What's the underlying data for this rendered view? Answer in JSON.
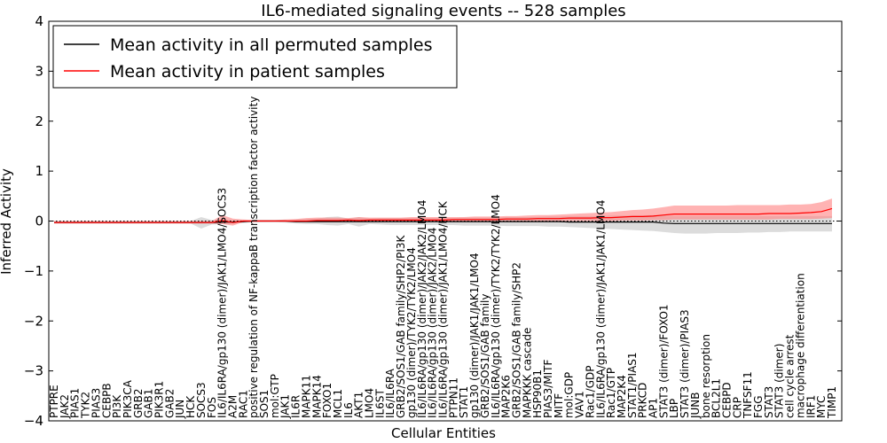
{
  "chart_data": {
    "type": "line",
    "title": "IL6-mediated signaling events -- 528 samples",
    "xlabel": "Cellular Entities",
    "ylabel": "Inferred Activity",
    "ylim": [
      -4,
      4
    ],
    "yticks": [
      -4,
      -3,
      -2,
      -1,
      0,
      1,
      2,
      3,
      4
    ],
    "ytick_labels": [
      "−4",
      "−3",
      "−2",
      "−1",
      "0",
      "1",
      "2",
      "3",
      "4"
    ],
    "legend": {
      "position": "top-left",
      "entries": [
        "Mean activity in all permuted samples",
        "Mean activity in patient samples"
      ]
    },
    "colors": {
      "permuted": "#000000",
      "patient": "#ff0000",
      "permuted_band": "#c0c0c0",
      "patient_band": "#ff8080"
    },
    "categories": [
      "PTPRE",
      "JAK2",
      "PIAS1",
      "TYK2",
      "PIAS3",
      "CEBPB",
      "PI3K",
      "PIK3CA",
      "GRB2",
      "GAB1",
      "PIK3R1",
      "GAB2",
      "JUN",
      "HCK",
      "SOCS3",
      "FOS",
      "IL6/IL6RA/gp130 (dimer)/JAK1/LMO4/SOCS3",
      "A2M",
      "RAC1",
      "positive regulation of NF-kappaB transcription factor activity",
      "SOS1",
      "mol:GTP",
      "JAK1",
      "IL6R",
      "MAPK11",
      "MAPK14",
      "FOXO1",
      "MCL1",
      "IL6",
      "AKT1",
      "LMO4",
      "IL6ST",
      "IL6/IL6RA",
      "GRB2/SOS1/GAB family/SHP2/PI3K",
      "gp130 (dimer)/TYK2/TYK2/LMO4",
      "IL6/IL6RA/gp130 (dimer)/JAK2/JAK2/LMO4",
      "IL6/IL6RA/gp130 (dimer)/JAK2/LMO4",
      "IL6/IL6RA/gp130 (dimer)/JAK1/LMO4/HCK",
      "PTPN11",
      "STAT1",
      "gp130 (dimer)/JAK1/JAK1/LMO4",
      "GRB2/SOS1/GAB family",
      "IL6/IL6RA/gp130 (dimer)/TYK2/TYK2/LMO4",
      "MAP2K6",
      "GRB2/SOS1/GAB family/SHP2",
      "MAPKKK cascade",
      "HSP90B1",
      "PIAS3/MITF",
      "MITF",
      "mol:GDP",
      "VAV1",
      "Rac1/GDP",
      "IL6/IL6RA/gp130 (dimer)/JAK1/JAK1/LMO4",
      "Rac1/GTP",
      "MAP2K4",
      "STAT1/PIAS1",
      "PRKCD",
      "AP1",
      "STAT3 (dimer)/FOXO1",
      "LBP",
      "STAT3 (dimer)/PIAS3",
      "JUNB",
      "bone resorption",
      "BCL2L1",
      "CEBPD",
      "CRP",
      "TNFSF11",
      "FGG",
      "STAT3",
      "STAT3 (dimer)",
      "cell cycle arrest",
      "macrophage differentiation",
      "IRF1",
      "MYC",
      "TIMP1"
    ],
    "series": [
      {
        "name": "Mean activity in all permuted samples",
        "values": [
          -0.03,
          -0.03,
          -0.03,
          -0.03,
          -0.03,
          -0.03,
          -0.03,
          -0.03,
          -0.03,
          -0.03,
          -0.03,
          -0.03,
          -0.03,
          -0.03,
          -0.03,
          -0.03,
          -0.02,
          -0.02,
          -0.01,
          0.0,
          0.0,
          0.0,
          0.0,
          -0.01,
          -0.01,
          -0.01,
          -0.01,
          -0.01,
          -0.01,
          -0.01,
          -0.01,
          -0.01,
          -0.01,
          -0.01,
          -0.01,
          -0.01,
          -0.01,
          -0.01,
          -0.01,
          -0.01,
          -0.01,
          -0.01,
          -0.01,
          -0.01,
          -0.01,
          -0.01,
          -0.01,
          -0.01,
          -0.01,
          -0.02,
          -0.02,
          -0.02,
          -0.02,
          -0.02,
          -0.02,
          -0.02,
          -0.02,
          -0.02,
          -0.04,
          -0.05,
          -0.05,
          -0.05,
          -0.05,
          -0.05,
          -0.05,
          -0.05,
          -0.05,
          -0.05,
          -0.05,
          -0.05,
          -0.05,
          -0.05,
          -0.05,
          -0.05,
          -0.05
        ],
        "lower": [
          -0.05,
          -0.05,
          -0.05,
          -0.05,
          -0.05,
          -0.05,
          -0.05,
          -0.05,
          -0.05,
          -0.05,
          -0.05,
          -0.05,
          -0.05,
          -0.05,
          -0.15,
          -0.07,
          -0.06,
          -0.05,
          -0.04,
          -0.02,
          -0.02,
          -0.02,
          -0.03,
          -0.05,
          -0.06,
          -0.06,
          -0.08,
          -0.09,
          -0.06,
          -0.11,
          -0.06,
          -0.07,
          -0.08,
          -0.08,
          -0.08,
          -0.08,
          -0.08,
          -0.08,
          -0.08,
          -0.09,
          -0.09,
          -0.09,
          -0.09,
          -0.1,
          -0.1,
          -0.1,
          -0.1,
          -0.11,
          -0.11,
          -0.12,
          -0.13,
          -0.14,
          -0.15,
          -0.16,
          -0.17,
          -0.18,
          -0.19,
          -0.2,
          -0.22,
          -0.24,
          -0.25,
          -0.25,
          -0.25,
          -0.24,
          -0.24,
          -0.24,
          -0.23,
          -0.23,
          -0.22,
          -0.22,
          -0.21,
          -0.21,
          -0.21,
          -0.21,
          -0.21
        ],
        "upper": [
          0.0,
          0.0,
          0.0,
          0.0,
          0.0,
          0.0,
          0.0,
          0.0,
          0.0,
          0.0,
          0.0,
          0.0,
          0.0,
          0.0,
          0.08,
          0.02,
          0.02,
          0.02,
          0.02,
          0.02,
          0.02,
          0.02,
          0.02,
          0.03,
          0.04,
          0.05,
          0.08,
          0.09,
          0.05,
          0.08,
          0.05,
          0.06,
          0.06,
          0.06,
          0.06,
          0.06,
          0.06,
          0.06,
          0.06,
          0.07,
          0.07,
          0.07,
          0.07,
          0.08,
          0.08,
          0.08,
          0.08,
          0.09,
          0.09,
          0.1,
          0.1,
          0.1,
          0.1,
          0.11,
          0.11,
          0.11,
          0.11,
          0.12,
          0.11,
          0.1,
          0.1,
          0.1,
          0.1,
          0.1,
          0.1,
          0.1,
          0.1,
          0.1,
          0.1,
          0.1,
          0.1,
          0.1,
          0.1,
          0.1,
          0.1
        ]
      },
      {
        "name": "Mean activity in patient samples",
        "values": [
          -0.03,
          -0.03,
          -0.03,
          -0.03,
          -0.03,
          -0.03,
          -0.03,
          -0.03,
          -0.03,
          -0.03,
          -0.03,
          -0.03,
          -0.03,
          -0.03,
          -0.03,
          -0.03,
          0.01,
          -0.03,
          0.0,
          0.0,
          0.0,
          0.0,
          0.0,
          0.0,
          0.0,
          0.01,
          0.01,
          0.01,
          0.02,
          0.01,
          0.02,
          0.02,
          0.02,
          0.02,
          0.02,
          0.02,
          0.02,
          0.02,
          0.03,
          0.03,
          0.03,
          0.03,
          0.03,
          0.04,
          0.04,
          0.04,
          0.05,
          0.05,
          0.05,
          0.06,
          0.06,
          0.06,
          0.07,
          0.07,
          0.08,
          0.09,
          0.09,
          0.1,
          0.12,
          0.14,
          0.14,
          0.14,
          0.14,
          0.14,
          0.14,
          0.14,
          0.14,
          0.14,
          0.15,
          0.15,
          0.15,
          0.16,
          0.17,
          0.19,
          0.25
        ],
        "lower": [
          -0.05,
          -0.05,
          -0.05,
          -0.05,
          -0.05,
          -0.05,
          -0.05,
          -0.05,
          -0.05,
          -0.05,
          -0.05,
          -0.05,
          -0.05,
          -0.05,
          -0.05,
          -0.05,
          -0.06,
          -0.09,
          -0.02,
          -0.01,
          -0.01,
          -0.01,
          -0.01,
          -0.01,
          -0.01,
          -0.01,
          -0.01,
          -0.01,
          -0.01,
          -0.01,
          -0.01,
          -0.01,
          -0.01,
          -0.01,
          -0.01,
          -0.01,
          -0.01,
          -0.01,
          -0.01,
          -0.01,
          -0.01,
          -0.01,
          -0.01,
          -0.01,
          -0.01,
          -0.01,
          -0.01,
          0.0,
          0.0,
          0.0,
          0.0,
          0.0,
          0.0,
          0.0,
          0.01,
          0.01,
          0.01,
          0.02,
          0.02,
          0.03,
          0.03,
          0.03,
          0.03,
          0.03,
          0.03,
          0.03,
          0.03,
          0.03,
          0.03,
          0.04,
          0.04,
          0.04,
          0.04,
          0.05,
          0.06
        ],
        "upper": [
          0.0,
          0.0,
          0.0,
          0.0,
          0.0,
          0.0,
          0.0,
          0.0,
          0.0,
          0.0,
          0.0,
          0.0,
          0.0,
          0.0,
          0.0,
          0.0,
          0.12,
          0.05,
          0.03,
          0.02,
          0.02,
          0.02,
          0.03,
          0.04,
          0.06,
          0.07,
          0.07,
          0.07,
          0.06,
          0.08,
          0.07,
          0.07,
          0.07,
          0.07,
          0.08,
          0.08,
          0.08,
          0.08,
          0.08,
          0.08,
          0.09,
          0.09,
          0.09,
          0.1,
          0.1,
          0.11,
          0.12,
          0.12,
          0.13,
          0.14,
          0.15,
          0.16,
          0.17,
          0.18,
          0.2,
          0.22,
          0.23,
          0.25,
          0.28,
          0.31,
          0.31,
          0.31,
          0.31,
          0.31,
          0.31,
          0.32,
          0.32,
          0.32,
          0.32,
          0.32,
          0.33,
          0.33,
          0.34,
          0.38,
          0.45
        ]
      }
    ]
  }
}
